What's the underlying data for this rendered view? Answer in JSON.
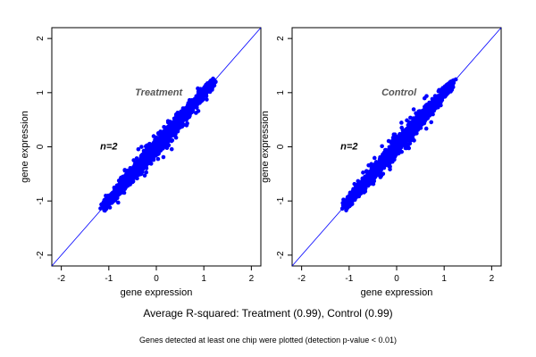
{
  "figure": {
    "caption_main": "Average R-squared: Treatment (0.99), Control (0.99)",
    "caption_note": "Genes detected at least one chip were plotted (detection p-value < 0.01)",
    "colors": {
      "points": "#0000ff",
      "identity_line": "#0000ff",
      "panel_label": "#555555",
      "axes": "#000000"
    }
  },
  "chart_data": [
    {
      "type": "scatter",
      "title": "Treatment",
      "annotation": "n=2",
      "xlabel": "gene expression",
      "ylabel": "gene expression",
      "xlim": [
        -2.2,
        2.2
      ],
      "ylim": [
        -2.2,
        2.2
      ],
      "xticks": [
        -2,
        -1,
        0,
        1,
        2
      ],
      "yticks": [
        -2,
        -1,
        0,
        1,
        2
      ],
      "reference_line": "y = x",
      "point_cloud": {
        "x_range": [
          -1.1,
          1.2
        ],
        "center_line": "y = x",
        "spread": 0.08
      },
      "sample_points": [
        {
          "x": -1.1,
          "y": -1.08
        },
        {
          "x": -0.8,
          "y": -0.78
        },
        {
          "x": -0.5,
          "y": -0.45
        },
        {
          "x": -0.2,
          "y": -0.18
        },
        {
          "x": 0.0,
          "y": 0.02
        },
        {
          "x": 0.3,
          "y": 0.31
        },
        {
          "x": 0.6,
          "y": 0.58
        },
        {
          "x": 0.9,
          "y": 0.91
        },
        {
          "x": 1.2,
          "y": 1.18
        }
      ]
    },
    {
      "type": "scatter",
      "title": "Control",
      "annotation": "n=2",
      "xlabel": "gene expression",
      "ylabel": "gene expression",
      "xlim": [
        -2.2,
        2.2
      ],
      "ylim": [
        -2.2,
        2.2
      ],
      "xticks": [
        -2,
        -1,
        0,
        1,
        2
      ],
      "yticks": [
        -2,
        -1,
        0,
        1,
        2
      ],
      "reference_line": "y = x",
      "point_cloud": {
        "x_range": [
          -1.1,
          1.2
        ],
        "center_line": "y = x",
        "spread": 0.08
      },
      "sample_points": [
        {
          "x": -1.1,
          "y": -1.08
        },
        {
          "x": -0.8,
          "y": -0.78
        },
        {
          "x": -0.5,
          "y": -0.45
        },
        {
          "x": -0.2,
          "y": -0.18
        },
        {
          "x": 0.0,
          "y": 0.02
        },
        {
          "x": 0.3,
          "y": 0.31
        },
        {
          "x": 0.6,
          "y": 0.58
        },
        {
          "x": 0.9,
          "y": 0.91
        },
        {
          "x": 1.2,
          "y": 1.18
        }
      ]
    }
  ]
}
